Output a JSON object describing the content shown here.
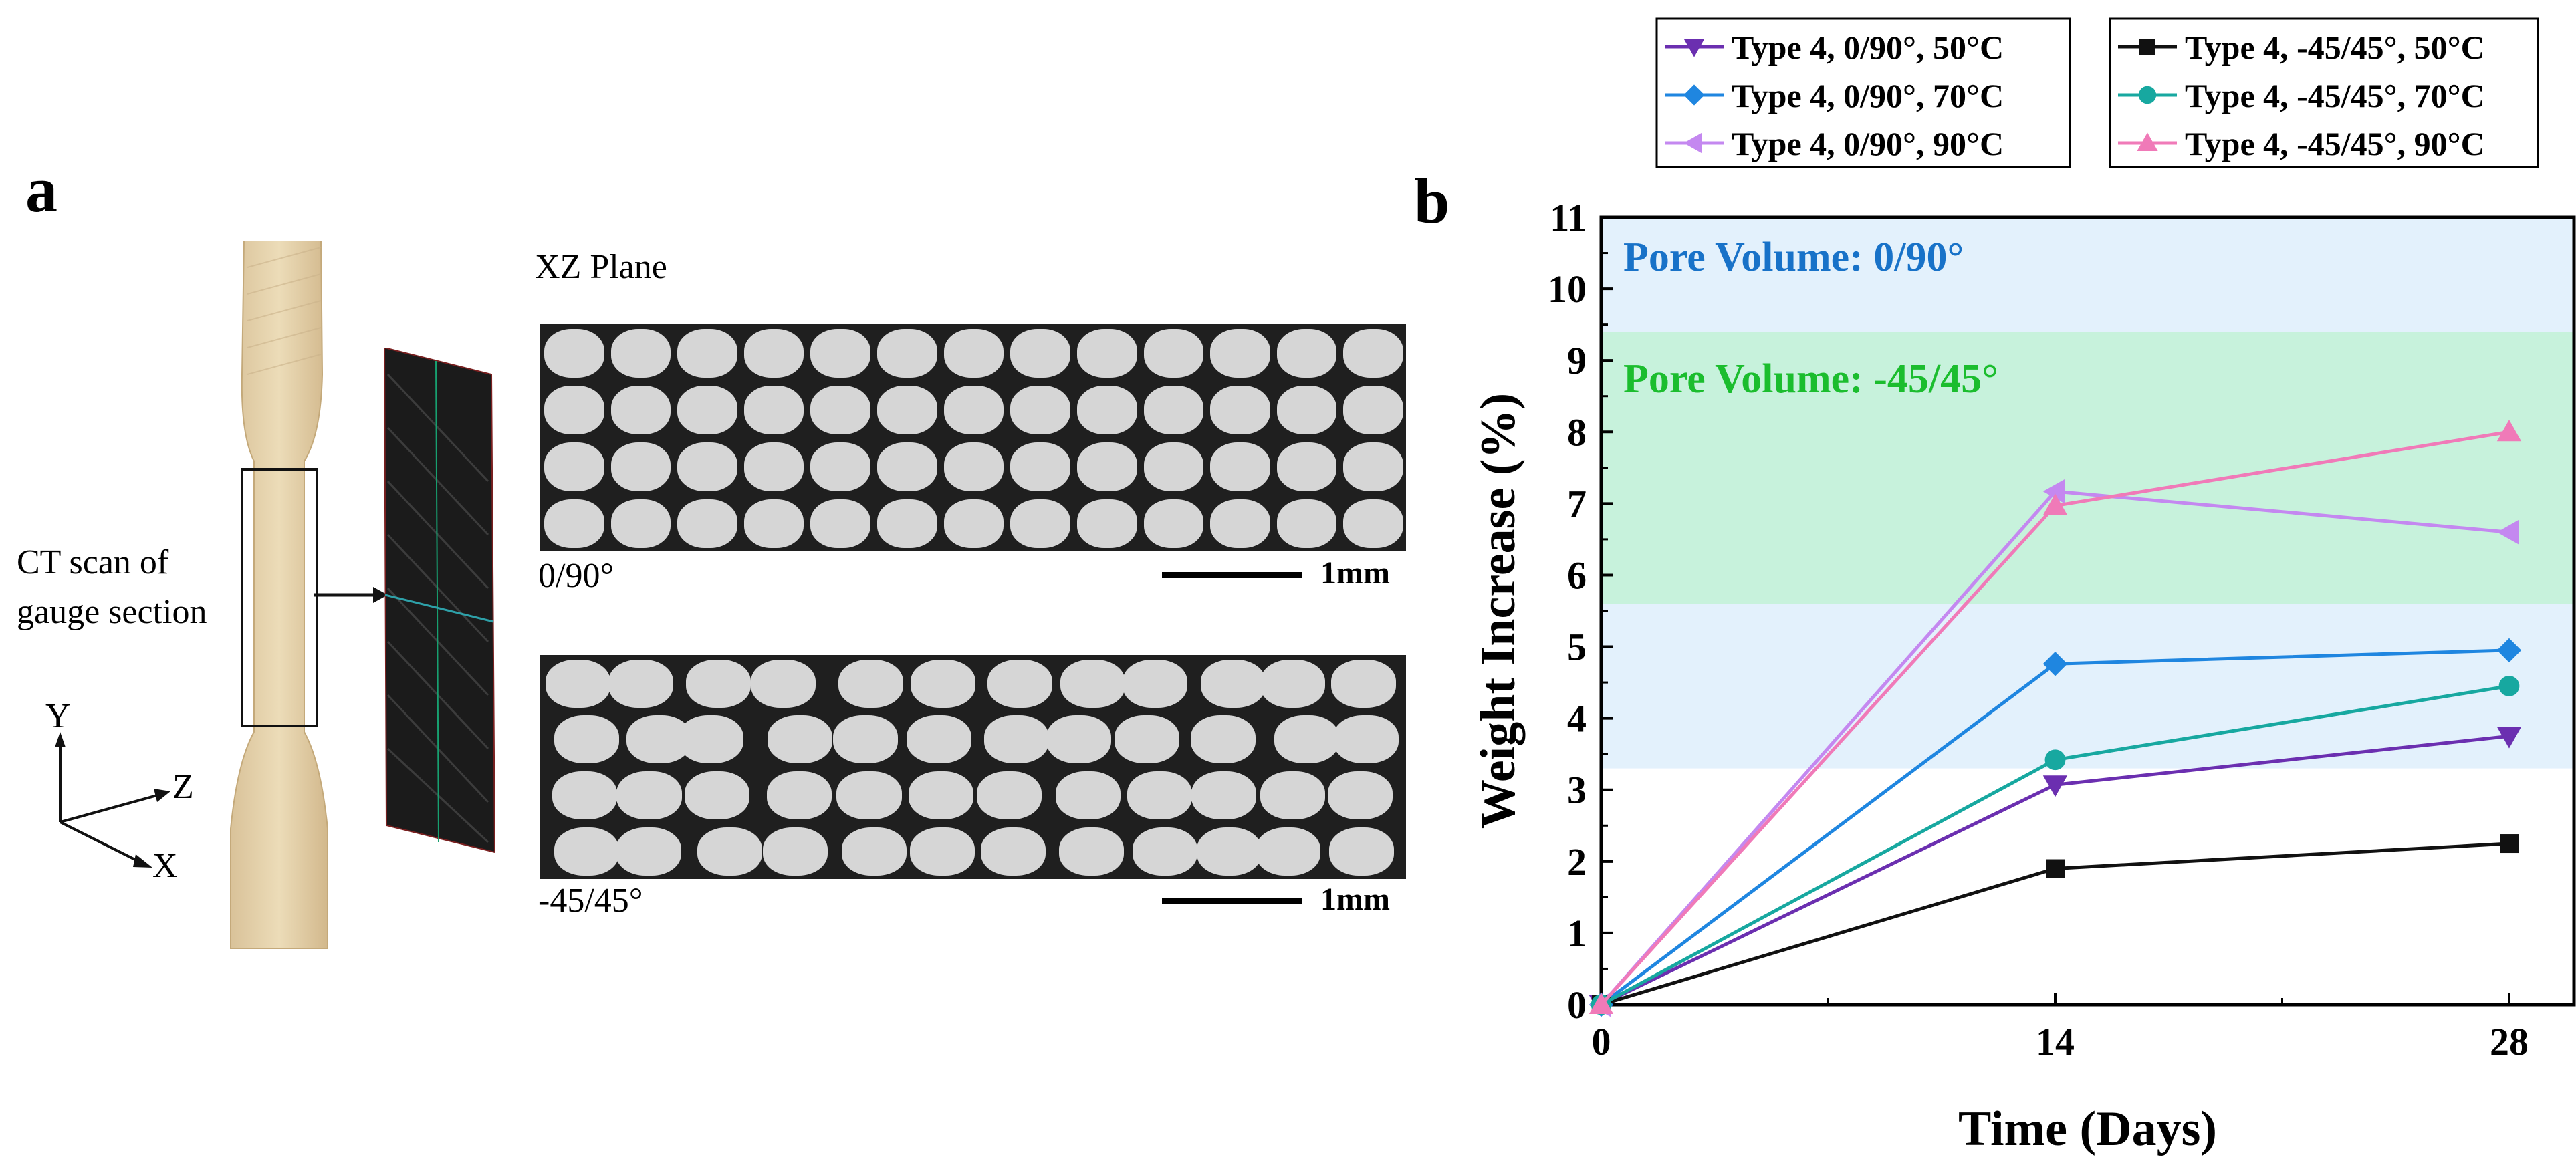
{
  "panel_a": {
    "letter": "a",
    "ct_caption": "CT scan of\ngauge section",
    "plane_label": "XZ Plane",
    "image_top_label": "0/90°",
    "image_bottom_label": "-45/45°",
    "scale_label": "1mm",
    "axis_y": "Y",
    "axis_z": "Z",
    "axis_x": "X",
    "colors": {
      "specimen": "#e6d2a8",
      "specimen_shadow": "#c7ad82",
      "ct_bg": "#202020",
      "bead": "#d9d9d9"
    }
  },
  "panel_b": {
    "letter": "b",
    "region_labels": {
      "top": "Pore Volume: 0/90°",
      "middle": "Pore Volume: -45/45°"
    },
    "region_colors": {
      "blue": "#e3f1fc",
      "green": "#c7f2dc",
      "blue_text": "#1872c8",
      "green_text": "#1bbd2e"
    }
  },
  "chart_data": {
    "type": "line",
    "title": "",
    "xlabel": "Time (Days)",
    "ylabel": "Weight Increase (%)",
    "x": [
      0,
      14,
      28
    ],
    "xticks": [
      0,
      14,
      28
    ],
    "xlim": [
      0,
      30
    ],
    "ylim": [
      0,
      11
    ],
    "yticks": [
      0,
      1,
      2,
      3,
      4,
      5,
      6,
      7,
      8,
      9,
      10,
      11
    ],
    "shaded_bands": [
      {
        "label": "Pore Volume: 0/90°",
        "y_from": 3.3,
        "y_to": 11.0,
        "color": "#e3f1fc"
      },
      {
        "label": "Pore Volume: -45/45°",
        "y_from": 5.6,
        "y_to": 9.4,
        "color": "#c7f2dc"
      }
    ],
    "legend_position": "top",
    "series": [
      {
        "name": "Type 4, 0/90°, 50°C",
        "marker": "triangle-down",
        "color": "#6b2fb0",
        "values": [
          0,
          3.07,
          3.75
        ]
      },
      {
        "name": "Type 4, 0/90°, 70°C",
        "marker": "diamond",
        "color": "#1f86e0",
        "values": [
          0,
          4.76,
          4.95
        ]
      },
      {
        "name": "Type 4, 0/90°, 90°C",
        "marker": "triangle-left",
        "color": "#c488f0",
        "values": [
          0,
          7.17,
          6.6
        ]
      },
      {
        "name": "Type 4, -45/45°, 50°C",
        "marker": "square",
        "color": "#111111",
        "values": [
          0,
          1.9,
          2.25
        ]
      },
      {
        "name": "Type 4, -45/45°, 70°C",
        "marker": "circle",
        "color": "#17a8a0",
        "values": [
          0,
          3.42,
          4.45
        ]
      },
      {
        "name": "Type 4, -45/45°, 90°C",
        "marker": "triangle-up",
        "color": "#f07ab8",
        "values": [
          0,
          6.97,
          8.0
        ]
      }
    ]
  }
}
